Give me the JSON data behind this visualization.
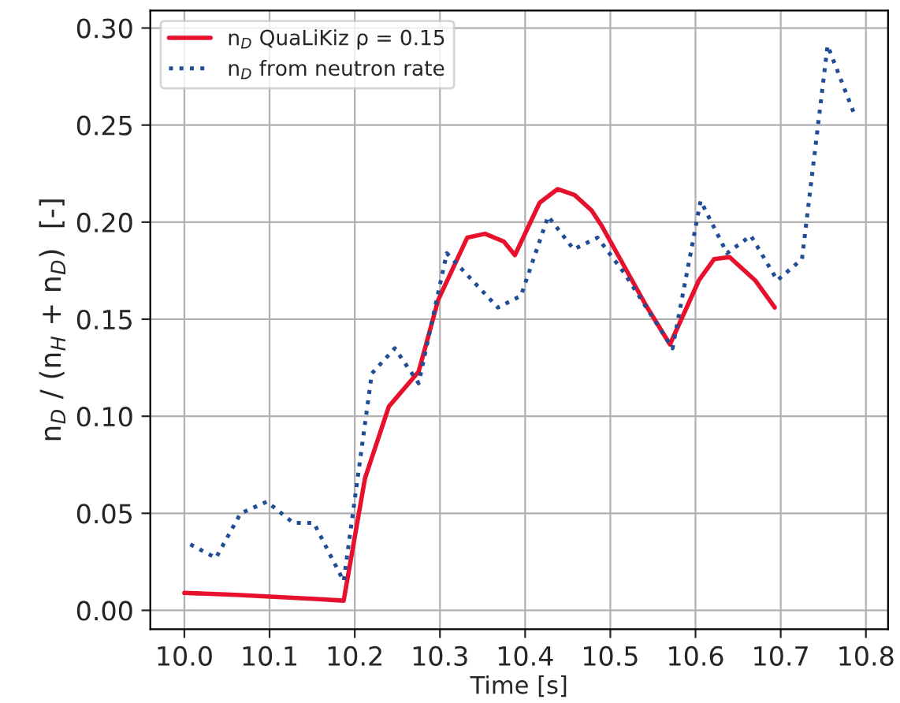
{
  "chart_data": {
    "type": "line",
    "xlabel": "Time [s]",
    "ylabel": "n$_{D}$ / (n$_{H}$ + n$_{D}$)  [-]",
    "xlim": [
      9.96,
      10.826
    ],
    "ylim": [
      -0.0097,
      0.309
    ],
    "xticks": [
      {
        "value": 10.0,
        "label": "10.0"
      },
      {
        "value": 10.1,
        "label": "10.1"
      },
      {
        "value": 10.2,
        "label": "10.2"
      },
      {
        "value": 10.3,
        "label": "10.3"
      },
      {
        "value": 10.4,
        "label": "10.4"
      },
      {
        "value": 10.5,
        "label": "10.5"
      },
      {
        "value": 10.6,
        "label": "10.6"
      },
      {
        "value": 10.7,
        "label": "10.7"
      },
      {
        "value": 10.8,
        "label": "10.8"
      }
    ],
    "yticks": [
      {
        "value": 0.0,
        "label": "0.00"
      },
      {
        "value": 0.05,
        "label": "0.05"
      },
      {
        "value": 0.1,
        "label": "0.10"
      },
      {
        "value": 0.15,
        "label": "0.15"
      },
      {
        "value": 0.2,
        "label": "0.20"
      },
      {
        "value": 0.25,
        "label": "0.25"
      },
      {
        "value": 0.3,
        "label": "0.30"
      }
    ],
    "grid": true,
    "legend": "top left",
    "series": [
      {
        "name": "n$_{D}$ QuaLiKiz ρ = 0.15",
        "color": "#e8112d",
        "line_style": "solid",
        "x": [
          10.0,
          10.06,
          10.15,
          10.187,
          10.212,
          10.24,
          10.275,
          10.298,
          10.332,
          10.353,
          10.375,
          10.388,
          10.417,
          10.438,
          10.458,
          10.478,
          10.49,
          10.542,
          10.57,
          10.604,
          10.622,
          10.64,
          10.67,
          10.693
        ],
        "values": [
          0.009,
          0.008,
          0.006,
          0.005,
          0.068,
          0.105,
          0.123,
          0.16,
          0.192,
          0.194,
          0.19,
          0.183,
          0.21,
          0.217,
          0.214,
          0.206,
          0.198,
          0.157,
          0.137,
          0.17,
          0.181,
          0.182,
          0.17,
          0.156
        ]
      },
      {
        "name": "n$_{D}$ from neutron rate",
        "color": "#1f4e96",
        "line_style": "dotted",
        "x": [
          10.007,
          10.037,
          10.066,
          10.097,
          10.128,
          10.152,
          10.187,
          10.22,
          10.247,
          10.275,
          10.308,
          10.368,
          10.395,
          10.427,
          10.457,
          10.485,
          10.516,
          10.573,
          10.606,
          10.637,
          10.665,
          10.696,
          10.725,
          10.755,
          10.787
        ],
        "values": [
          0.034,
          0.027,
          0.05,
          0.056,
          0.045,
          0.045,
          0.015,
          0.122,
          0.135,
          0.117,
          0.184,
          0.156,
          0.162,
          0.203,
          0.186,
          0.192,
          0.174,
          0.135,
          0.211,
          0.184,
          0.193,
          0.17,
          0.181,
          0.291,
          0.255
        ]
      }
    ]
  }
}
